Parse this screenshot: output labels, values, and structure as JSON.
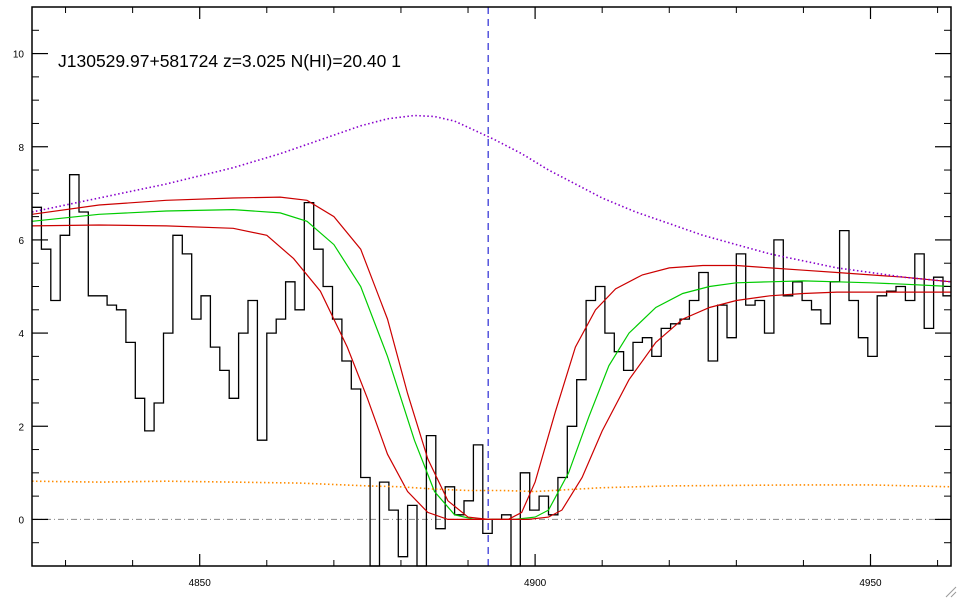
{
  "chart_data": {
    "type": "line",
    "title": "J130529.97+581724 z=3.025 N(HI)=20.40 1",
    "xlabel": "",
    "ylabel": "",
    "xlim": [
      4825,
      4962
    ],
    "ylim": [
      -1,
      11
    ],
    "x_ticks": [
      4850,
      4900,
      4950
    ],
    "y_ticks": [
      0,
      2,
      4,
      6,
      8,
      10
    ],
    "grid": false,
    "legend": "none",
    "reference_lines": [
      {
        "kind": "vertical",
        "x": 4893,
        "color": "#0000cc",
        "style": "dashed"
      },
      {
        "kind": "horizontal",
        "y": 0,
        "color": "#888888",
        "style": "dashdot"
      }
    ],
    "series": [
      {
        "style": "steps",
        "color": "#000000",
        "x": [
          4825.0,
          4826.4,
          4827.8,
          4829.2,
          4830.6,
          4832.0,
          4833.4,
          4834.8,
          4836.2,
          4837.6,
          4839.0,
          4840.4,
          4841.8,
          4843.2,
          4844.6,
          4846.0,
          4847.4,
          4848.8,
          4850.2,
          4851.6,
          4853.0,
          4854.4,
          4855.8,
          4857.2,
          4858.6,
          4860.0,
          4861.4,
          4862.8,
          4864.2,
          4865.6,
          4867.0,
          4868.4,
          4869.8,
          4871.2,
          4872.6,
          4874.0,
          4875.4,
          4876.8,
          4878.2,
          4879.6,
          4881.0,
          4882.4,
          4883.8,
          4885.2,
          4886.6,
          4888.0,
          4889.4,
          4890.8,
          4892.2,
          4893.6,
          4895.0,
          4896.4,
          4897.8,
          4899.2,
          4900.6,
          4902.0,
          4903.4,
          4904.8,
          4906.2,
          4907.6,
          4909.0,
          4910.4,
          4911.8,
          4913.2,
          4914.6,
          4916.0,
          4917.4,
          4918.8,
          4920.2,
          4921.6,
          4923.0,
          4924.4,
          4925.8,
          4927.2,
          4928.6,
          4930.0,
          4931.4,
          4932.8,
          4934.2,
          4935.6,
          4937.0,
          4938.4,
          4939.8,
          4941.2,
          4942.6,
          4944.0,
          4945.4,
          4946.8,
          4948.2,
          4949.6,
          4951.0,
          4952.4,
          4953.8,
          4955.2,
          4956.6,
          4958.0,
          4959.4,
          4960.8
        ],
        "y": [
          6.7,
          5.8,
          4.7,
          6.1,
          7.4,
          6.6,
          4.8,
          4.8,
          4.6,
          4.5,
          3.8,
          2.6,
          1.9,
          2.5,
          4.0,
          6.1,
          5.7,
          4.3,
          4.8,
          3.7,
          3.2,
          2.6,
          4.0,
          4.7,
          1.7,
          4.0,
          4.3,
          5.1,
          4.5,
          6.8,
          5.8,
          5.0,
          4.3,
          3.4,
          2.8,
          0.9,
          -1.0,
          0.8,
          0.2,
          -0.8,
          0.3,
          -1.5,
          1.8,
          -0.2,
          0.7,
          0.1,
          0.4,
          1.6,
          -0.3,
          0.0,
          0.1,
          -1.0,
          1.0,
          0.2,
          0.5,
          0.1,
          0.9,
          2.0,
          3.0,
          4.7,
          5.0,
          4.0,
          3.6,
          3.2,
          3.8,
          3.9,
          3.5,
          4.1,
          4.2,
          4.3,
          4.7,
          5.3,
          3.4,
          4.6,
          3.9,
          5.7,
          4.6,
          4.7,
          4.0,
          6.0,
          4.8,
          5.1,
          4.7,
          4.5,
          4.2,
          5.1,
          6.2,
          4.7,
          3.9,
          3.5,
          4.8,
          4.9,
          5.0,
          4.7,
          5.7,
          4.1,
          5.2,
          4.8
        ]
      },
      {
        "style": "solid",
        "color": "#00cc00",
        "x": [
          4825,
          4835,
          4845,
          4855,
          4862,
          4866,
          4870,
          4874,
          4878,
          4882,
          4885,
          4888,
          4891,
          4894,
          4897,
          4900,
          4902,
          4905,
          4908,
          4911,
          4914,
          4918,
          4922,
          4926,
          4930,
          4935,
          4940,
          4945,
          4950,
          4955,
          4962
        ],
        "y": [
          6.4,
          6.55,
          6.62,
          6.65,
          6.58,
          6.4,
          5.9,
          5.0,
          3.5,
          1.7,
          0.6,
          0.1,
          0.0,
          0.0,
          0.0,
          0.05,
          0.2,
          1.0,
          2.2,
          3.3,
          4.0,
          4.55,
          4.85,
          5.0,
          5.08,
          5.1,
          5.12,
          5.1,
          5.08,
          5.05,
          5.0
        ]
      },
      {
        "style": "solid",
        "color": "#cc0000",
        "x": [
          4825,
          4835,
          4845,
          4855,
          4862,
          4866,
          4870,
          4874,
          4878,
          4881,
          4884,
          4887,
          4890,
          4893,
          4896,
          4898,
          4900,
          4903,
          4906,
          4909,
          4912,
          4916,
          4920,
          4925,
          4930,
          4935,
          4940,
          4945,
          4950,
          4955,
          4962
        ],
        "y": [
          6.55,
          6.75,
          6.85,
          6.9,
          6.92,
          6.85,
          6.5,
          5.8,
          4.3,
          2.7,
          1.3,
          0.4,
          0.05,
          0.0,
          0.0,
          0.15,
          0.8,
          2.3,
          3.7,
          4.5,
          4.95,
          5.25,
          5.4,
          5.45,
          5.45,
          5.4,
          5.35,
          5.3,
          5.25,
          5.2,
          5.1
        ]
      },
      {
        "style": "solid",
        "color": "#cc0000",
        "x": [
          4825,
          4835,
          4845,
          4855,
          4860,
          4864,
          4868,
          4872,
          4875,
          4878,
          4881,
          4884,
          4887,
          4890,
          4893,
          4896,
          4899,
          4902,
          4904,
          4907,
          4910,
          4914,
          4918,
          4922,
          4926,
          4930,
          4935,
          4940,
          4945,
          4950,
          4955,
          4962
        ],
        "y": [
          6.3,
          6.32,
          6.3,
          6.25,
          6.1,
          5.6,
          4.9,
          3.7,
          2.6,
          1.4,
          0.6,
          0.15,
          0.0,
          0.0,
          0.0,
          0.0,
          0.0,
          0.05,
          0.2,
          0.9,
          1.9,
          3.0,
          3.8,
          4.3,
          4.55,
          4.7,
          4.8,
          4.85,
          4.88,
          4.88,
          4.88,
          4.88
        ]
      },
      {
        "style": "dotted",
        "color": "#8800cc",
        "x": [
          4825,
          4835,
          4845,
          4855,
          4862,
          4868,
          4874,
          4878,
          4882,
          4885,
          4888,
          4891,
          4894,
          4898,
          4902,
          4906,
          4910,
          4915,
          4920,
          4925,
          4930,
          4935,
          4940,
          4945,
          4950,
          4955,
          4962
        ],
        "y": [
          6.6,
          6.9,
          7.2,
          7.55,
          7.85,
          8.15,
          8.45,
          8.6,
          8.67,
          8.65,
          8.55,
          8.35,
          8.15,
          7.85,
          7.5,
          7.2,
          6.9,
          6.6,
          6.35,
          6.1,
          5.9,
          5.7,
          5.55,
          5.4,
          5.3,
          5.2,
          5.1
        ]
      },
      {
        "style": "dotted",
        "color": "#ff8c00",
        "x": [
          4825,
          4835,
          4845,
          4855,
          4865,
          4875,
          4880,
          4885,
          4890,
          4895,
          4900,
          4905,
          4910,
          4920,
          4930,
          4940,
          4950,
          4962
        ],
        "y": [
          0.82,
          0.8,
          0.82,
          0.8,
          0.78,
          0.72,
          0.7,
          0.65,
          0.62,
          0.62,
          0.6,
          0.64,
          0.68,
          0.72,
          0.73,
          0.74,
          0.74,
          0.7
        ]
      }
    ]
  }
}
